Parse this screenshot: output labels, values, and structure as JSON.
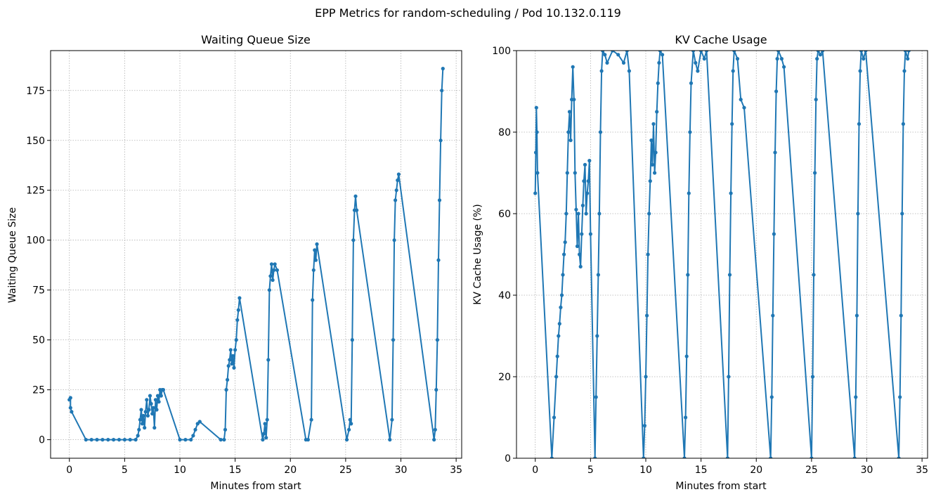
{
  "figure": {
    "suptitle": "EPP Metrics for random-scheduling / Pod 10.132.0.119"
  },
  "colors": {
    "series": "#1f77b4",
    "grid": "#b0b0b0"
  },
  "chart_data": [
    {
      "type": "line",
      "title": "Waiting Queue Size",
      "xlabel": "Minutes from start",
      "ylabel": "Waiting Queue Size",
      "xlim": [
        -1.7,
        35.5
      ],
      "ylim": [
        -9.3,
        195
      ],
      "xticks": [
        0,
        5,
        10,
        15,
        20,
        25,
        30,
        35
      ],
      "xtick_labels": [
        "0",
        "5",
        "10",
        "15",
        "20",
        "25",
        "30",
        "35"
      ],
      "yticks": [
        0,
        25,
        50,
        75,
        100,
        125,
        150,
        175
      ],
      "ytick_labels": [
        "0",
        "25",
        "50",
        "75",
        "100",
        "125",
        "150",
        "175"
      ],
      "grid": true,
      "marker": "circle",
      "series": [
        {
          "x": [
            0,
            0.1,
            0.1,
            0.2,
            1.5,
            2.0,
            2.5,
            3.0,
            3.5,
            4.0,
            4.5,
            5.0,
            5.5,
            6.0,
            6.2,
            6.3,
            6.4,
            6.5,
            6.6,
            6.7,
            6.8,
            6.9,
            7.0,
            7.1,
            7.2,
            7.3,
            7.4,
            7.5,
            7.6,
            7.7,
            7.8,
            7.9,
            8.0,
            8.1,
            8.2,
            8.3,
            8.4,
            8.5,
            10.0,
            10.5,
            11.0,
            11.2,
            11.4,
            11.6,
            11.8,
            13.7,
            14.0,
            14.1,
            14.2,
            14.3,
            14.4,
            14.5,
            14.6,
            14.7,
            14.8,
            14.9,
            15.0,
            15.1,
            15.2,
            15.3,
            15.4,
            17.5,
            17.6,
            17.7,
            17.8,
            17.9,
            18.0,
            18.1,
            18.2,
            18.3,
            18.4,
            18.5,
            18.6,
            18.8,
            21.4,
            21.6,
            21.9,
            22.0,
            22.1,
            22.2,
            22.3,
            22.4,
            25.1,
            25.3,
            25.4,
            25.5,
            25.6,
            25.7,
            25.8,
            25.9,
            26.0,
            29.0,
            29.2,
            29.3,
            29.4,
            29.5,
            29.6,
            29.7,
            29.8,
            33.0,
            33.1,
            33.2,
            33.3,
            33.4,
            33.5,
            33.6,
            33.7,
            33.8
          ],
          "y": [
            20,
            21,
            16,
            14,
            0,
            0,
            0,
            0,
            0,
            0,
            0,
            0,
            0,
            0,
            2,
            5,
            10,
            15,
            8,
            12,
            6,
            14,
            20,
            12,
            15,
            22,
            18,
            13,
            16,
            6,
            20,
            15,
            22,
            19,
            25,
            22,
            25,
            25,
            0,
            0,
            0,
            2,
            5,
            8,
            9,
            0,
            0,
            5,
            25,
            30,
            37,
            40,
            45,
            38,
            42,
            36,
            45,
            50,
            60,
            65,
            71,
            0,
            3,
            8,
            1,
            10,
            40,
            75,
            82,
            88,
            80,
            85,
            88,
            85,
            0,
            0,
            10,
            70,
            85,
            95,
            90,
            98,
            0,
            5,
            10,
            8,
            50,
            100,
            115,
            122,
            115,
            0,
            10,
            50,
            100,
            120,
            125,
            130,
            133,
            0,
            5,
            25,
            50,
            90,
            120,
            150,
            175,
            186
          ]
        }
      ]
    },
    {
      "type": "line",
      "title": "KV Cache Usage",
      "xlabel": "Minutes from start",
      "ylabel": "KV Cache Usage (%)",
      "xlim": [
        -1.7,
        35.5
      ],
      "ylim": [
        0,
        100
      ],
      "xticks": [
        0,
        5,
        10,
        15,
        20,
        25,
        30,
        35
      ],
      "xtick_labels": [
        "0",
        "5",
        "10",
        "15",
        "20",
        "25",
        "30",
        "35"
      ],
      "yticks": [
        0,
        20,
        40,
        60,
        80,
        100
      ],
      "ytick_labels": [
        "0",
        "20",
        "40",
        "60",
        "80",
        "100"
      ],
      "grid": true,
      "marker": "circle",
      "series": [
        {
          "x": [
            0,
            0.05,
            0.1,
            0.15,
            0.2,
            1.5,
            1.7,
            1.9,
            2.0,
            2.1,
            2.2,
            2.3,
            2.4,
            2.5,
            2.6,
            2.7,
            2.8,
            2.9,
            3.0,
            3.1,
            3.2,
            3.3,
            3.4,
            3.5,
            3.6,
            3.7,
            3.8,
            3.9,
            4.0,
            4.1,
            4.2,
            4.3,
            4.4,
            4.5,
            4.6,
            4.7,
            4.8,
            4.9,
            5.0,
            5.4,
            5.5,
            5.6,
            5.7,
            5.8,
            5.9,
            6.0,
            6.1,
            6.3,
            6.5,
            7.0,
            7.5,
            8.0,
            8.3,
            8.5,
            9.8,
            9.9,
            10.0,
            10.1,
            10.2,
            10.3,
            10.4,
            10.5,
            10.6,
            10.7,
            10.8,
            10.9,
            11.0,
            11.1,
            11.2,
            11.3,
            11.5,
            13.5,
            13.6,
            13.7,
            13.8,
            13.9,
            14.0,
            14.1,
            14.3,
            14.5,
            14.7,
            15.0,
            15.3,
            15.5,
            17.4,
            17.5,
            17.6,
            17.7,
            17.8,
            17.9,
            18.0,
            18.3,
            18.6,
            18.9,
            21.3,
            21.4,
            21.5,
            21.6,
            21.7,
            21.8,
            21.9,
            22.0,
            22.3,
            22.5,
            25.0,
            25.1,
            25.2,
            25.3,
            25.4,
            25.5,
            25.6,
            25.8,
            26.0,
            28.9,
            29.0,
            29.1,
            29.2,
            29.3,
            29.4,
            29.5,
            29.7,
            29.9,
            32.9,
            33.0,
            33.1,
            33.2,
            33.3,
            33.4,
            33.5,
            33.7,
            33.8
          ],
          "y": [
            65,
            75,
            86,
            80,
            70,
            0,
            10,
            20,
            25,
            30,
            33,
            37,
            40,
            45,
            50,
            53,
            60,
            70,
            80,
            85,
            78,
            88,
            96,
            88,
            70,
            61,
            52,
            60,
            50,
            47,
            55,
            62,
            68,
            72,
            60,
            65,
            68,
            73,
            55,
            0,
            15,
            30,
            45,
            60,
            80,
            95,
            100,
            99,
            97,
            100,
            99,
            97,
            100,
            95,
            0,
            8,
            20,
            35,
            50,
            60,
            68,
            78,
            72,
            82,
            70,
            75,
            85,
            92,
            97,
            100,
            99,
            0,
            10,
            25,
            45,
            65,
            80,
            92,
            100,
            97,
            95,
            100,
            98,
            100,
            0,
            20,
            45,
            65,
            82,
            95,
            100,
            98,
            88,
            86,
            0,
            15,
            35,
            55,
            75,
            90,
            98,
            100,
            98,
            96,
            0,
            20,
            45,
            70,
            88,
            98,
            100,
            99,
            100,
            0,
            15,
            35,
            60,
            82,
            95,
            100,
            98,
            100,
            0,
            15,
            35,
            60,
            82,
            95,
            100,
            98,
            100
          ]
        }
      ]
    }
  ]
}
